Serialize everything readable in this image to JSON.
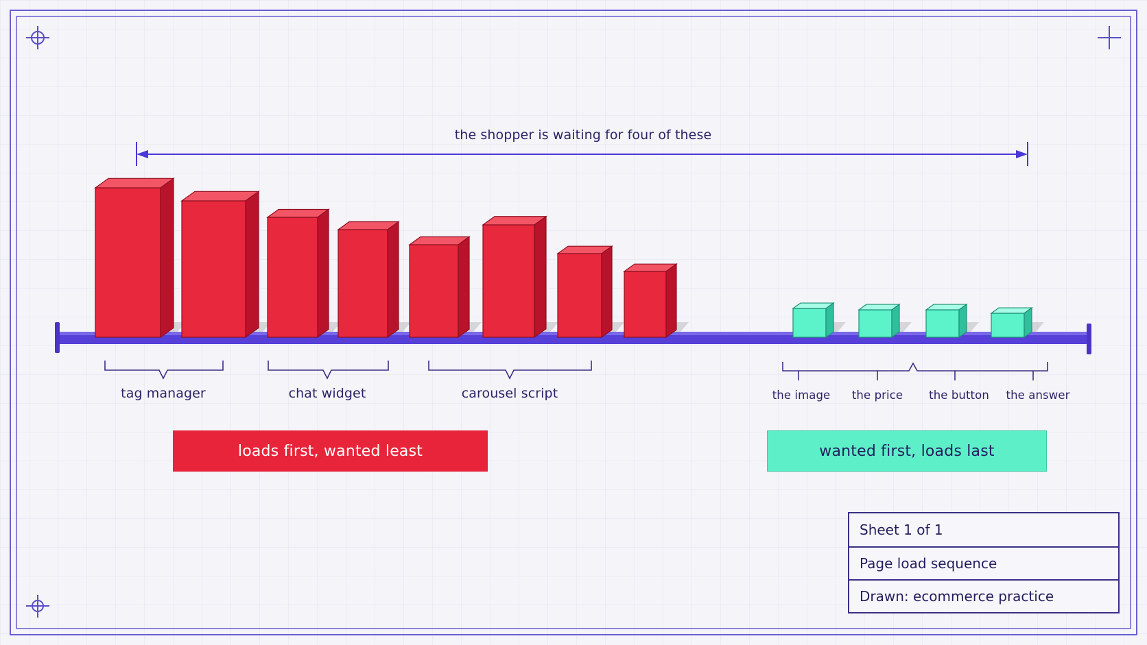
{
  "span_label": "the shopper is waiting for four of these",
  "group_labels": [
    "tag manager",
    "chat widget",
    "carousel script"
  ],
  "wanted_labels": [
    "the image",
    "the price",
    "the button",
    "the answer"
  ],
  "banner_left": "loads first, wanted least",
  "banner_right": "wanted first, loads last",
  "title_block": {
    "sheet": "Sheet 1 of 1",
    "title": "Page load sequence",
    "drawn": "Drawn: ecommerce practice"
  },
  "colors": {
    "red": "#e8243a",
    "teal": "#5df0c8",
    "ink": "#4a38d6",
    "frame": "#5a4fc8"
  }
}
